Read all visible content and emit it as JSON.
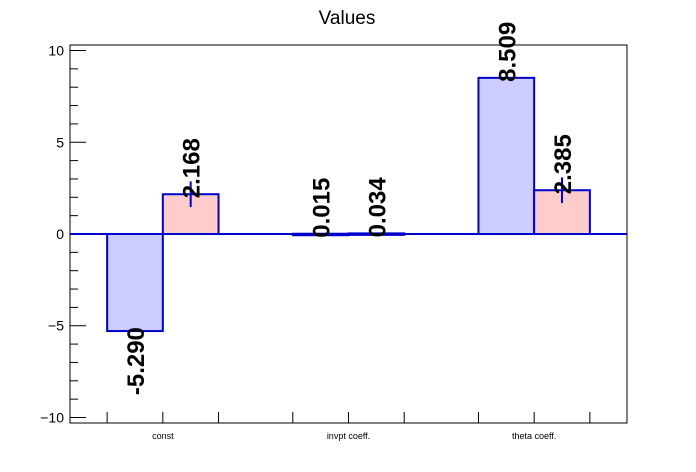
{
  "chart_data": {
    "type": "bar",
    "title": "Values",
    "xlabel": "",
    "ylabel": "",
    "categories": [
      "const",
      "invpt coeff.",
      "theta coeff."
    ],
    "ylim": [
      -10.3,
      10.3
    ],
    "yticks": [
      -10,
      -5,
      0,
      5,
      10
    ],
    "grid": false,
    "legend": "none",
    "series": [
      {
        "values": [
          -5.29,
          0.015,
          8.509
        ],
        "labels": [
          "-5.290",
          "0.015",
          "8.509"
        ],
        "color": "#ccccff",
        "errors": [
          0,
          0,
          0
        ]
      },
      {
        "values": [
          2.168,
          0.034,
          2.385
        ],
        "labels": [
          "2.168",
          "0.034",
          "2.385"
        ],
        "color": "#ffcccc",
        "errors": [
          0.7,
          0.02,
          0.7
        ]
      }
    ],
    "colors": {
      "bar_edge": "#0000cc",
      "zero_line": "#0000cc",
      "axis": "#000000"
    }
  }
}
